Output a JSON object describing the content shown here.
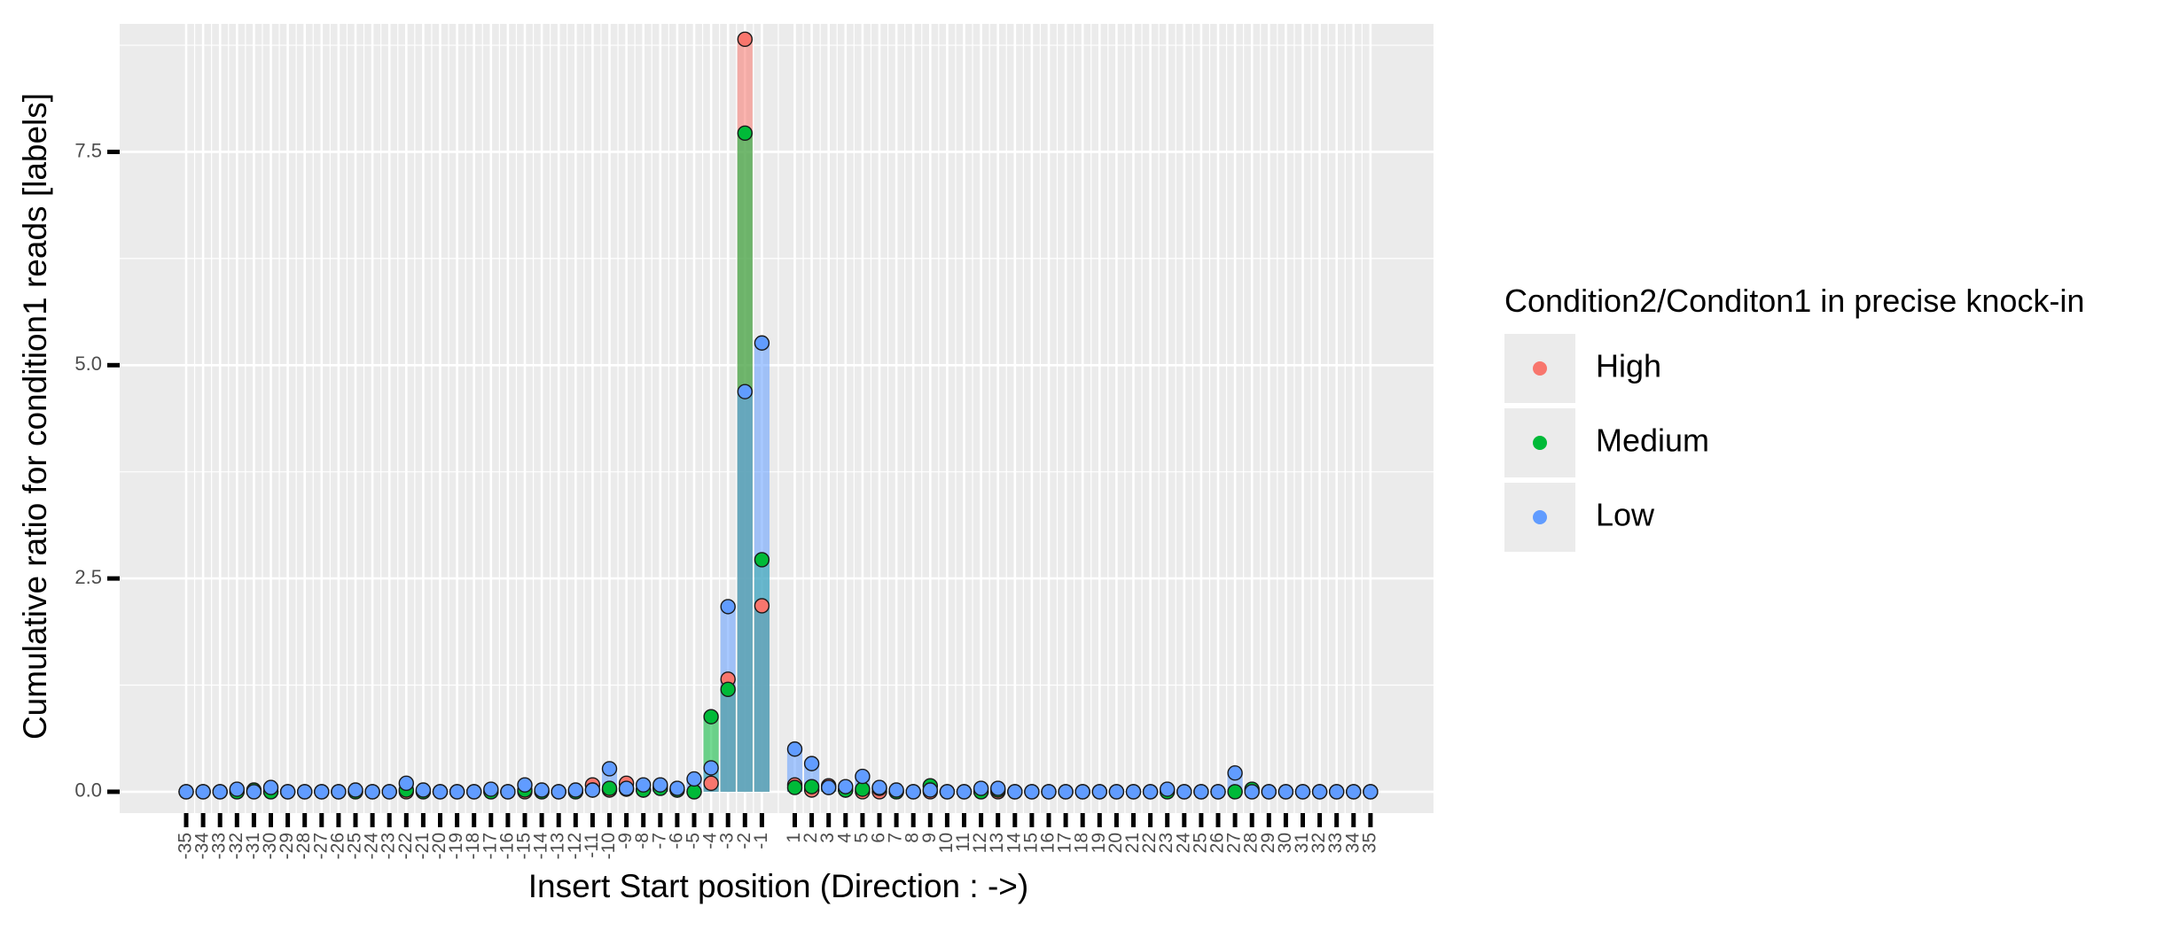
{
  "chart_data": {
    "type": "bar",
    "title": "",
    "xlabel": "Insert Start position (Direction : ->)",
    "ylabel": "Cumulative ratio for condition1 reads [labels]",
    "ylim": [
      -0.25,
      9.0
    ],
    "y_ticks": [
      0.0,
      2.5,
      5.0,
      7.5
    ],
    "y_tick_labels": [
      "0.0",
      "2.5",
      "5.0",
      "7.5"
    ],
    "grid": true,
    "legend": {
      "title": "Condition2/Conditon1 in precise knock-in",
      "placement": "right",
      "entries": [
        "High",
        "Medium",
        "Low"
      ]
    },
    "colors": {
      "High": "#F8766D",
      "Medium": "#00BA38",
      "Low": "#619CFF",
      "panel": "#EBEBEB",
      "grid": "#FFFFFF"
    },
    "categories": [
      "-35",
      "-34",
      "-33",
      "-32",
      "-31",
      "-30",
      "-29",
      "-28",
      "-27",
      "-26",
      "-25",
      "-24",
      "-23",
      "-22",
      "-21",
      "-20",
      "-19",
      "-18",
      "-17",
      "-16",
      "-15",
      "-14",
      "-13",
      "-12",
      "-11",
      "-10",
      "-9",
      "-8",
      "-7",
      "-6",
      "-5",
      "-4",
      "-3",
      "-2",
      "-1",
      "1",
      "2",
      "3",
      "4",
      "5",
      "6",
      "7",
      "8",
      "9",
      "10",
      "11",
      "12",
      "13",
      "14",
      "15",
      "16",
      "17",
      "18",
      "19",
      "20",
      "21",
      "22",
      "23",
      "24",
      "25",
      "26",
      "27",
      "28",
      "29",
      "30",
      "31",
      "32",
      "33",
      "34",
      "35"
    ],
    "series": [
      {
        "name": "High",
        "values": [
          0,
          0,
          0,
          0,
          0,
          0,
          0,
          0,
          0,
          0,
          0,
          0,
          0,
          0,
          0,
          0,
          0,
          0,
          0,
          0,
          0,
          0,
          0,
          0,
          0.08,
          0.02,
          0.1,
          0.02,
          0.05,
          0.02,
          0,
          0.1,
          1.32,
          8.82,
          2.18,
          0.08,
          0.02,
          0.07,
          0.02,
          0,
          0,
          0,
          0,
          0,
          0,
          0,
          0,
          0,
          0,
          0,
          0,
          0,
          0,
          0,
          0,
          0,
          0,
          0,
          0,
          0,
          0,
          0,
          0,
          0,
          0,
          0,
          0,
          0,
          0,
          0
        ]
      },
      {
        "name": "Medium",
        "values": [
          0,
          0,
          0,
          0,
          0.02,
          0,
          0,
          0,
          0,
          0,
          0,
          0,
          0,
          0.02,
          0,
          0,
          0,
          0,
          0,
          0,
          0.02,
          0,
          0,
          0,
          0.02,
          0.04,
          0.03,
          0.02,
          0.04,
          0.02,
          0,
          0.88,
          1.2,
          7.72,
          2.72,
          0.05,
          0.06,
          0.05,
          0.02,
          0.03,
          0.04,
          0,
          0,
          0.07,
          0,
          0,
          0,
          0.02,
          0,
          0,
          0,
          0,
          0,
          0,
          0,
          0,
          0,
          0,
          0,
          0,
          0,
          0,
          0.03,
          0,
          0,
          0,
          0,
          0,
          0,
          0
        ]
      },
      {
        "name": "Low",
        "values": [
          0,
          0,
          0,
          0.03,
          0,
          0.05,
          0,
          0,
          0,
          0,
          0.02,
          0,
          0,
          0.1,
          0.02,
          0,
          0,
          0,
          0.03,
          0,
          0.08,
          0.02,
          0,
          0.02,
          0.02,
          0.27,
          0.04,
          0.08,
          0.08,
          0.04,
          0.15,
          0.28,
          2.17,
          4.69,
          5.26,
          0.5,
          0.33,
          0.05,
          0.06,
          0.18,
          0.05,
          0.02,
          0,
          0.02,
          0,
          0,
          0.04,
          0.04,
          0,
          0,
          0,
          0,
          0,
          0,
          0,
          0,
          0,
          0.03,
          0,
          0,
          0,
          0.22,
          0,
          0,
          0,
          0,
          0,
          0,
          0,
          0
        ]
      }
    ]
  }
}
